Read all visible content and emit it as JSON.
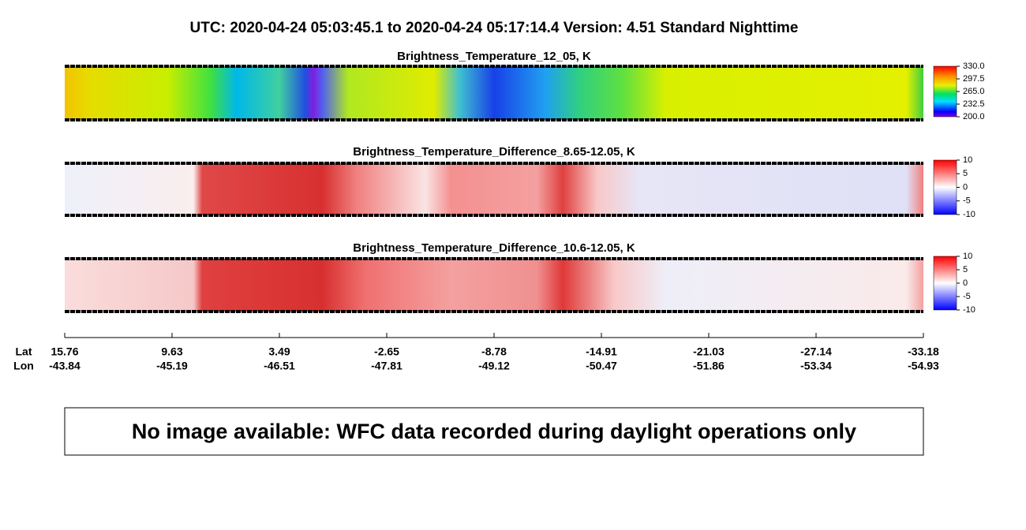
{
  "title": "UTC:  2020-04-24   05:03:45.1  to  2020-04-24   05:17:14.4    Version: 4.51  Standard Nighttime",
  "panels": [
    {
      "title": "Brightness_Temperature_12_05, K",
      "colorbar": {
        "lim": [
          200,
          330
        ],
        "ticks": [
          {
            "value": 330,
            "label": "330.0"
          },
          {
            "value": 297.5,
            "label": "297.5"
          },
          {
            "value": 265,
            "label": "265.0"
          },
          {
            "value": 232.5,
            "label": "232.5"
          },
          {
            "value": 200,
            "label": "200.0"
          }
        ]
      }
    },
    {
      "title": "Brightness_Temperature_Difference_8.65-12.05, K",
      "colorbar": {
        "lim": [
          -10,
          10
        ],
        "ticks": [
          10,
          5,
          0,
          -5,
          -10
        ]
      }
    },
    {
      "title": "Brightness_Temperature_Difference_10.6-12.05, K",
      "colorbar": {
        "lim": [
          -10,
          10
        ],
        "ticks": [
          10,
          5,
          0,
          -5,
          -10
        ]
      }
    }
  ],
  "axis": {
    "lat_label": "Lat",
    "lon_label": "Lon",
    "lat": [
      15.76,
      9.63,
      3.49,
      -2.65,
      -8.78,
      -14.91,
      -21.03,
      -27.14,
      -33.18
    ],
    "lon": [
      -43.84,
      -45.19,
      -46.51,
      -47.81,
      -49.12,
      -50.47,
      -51.86,
      -53.34,
      -54.93
    ]
  },
  "message": "No image available: WFC data recorded during daylight operations only"
}
